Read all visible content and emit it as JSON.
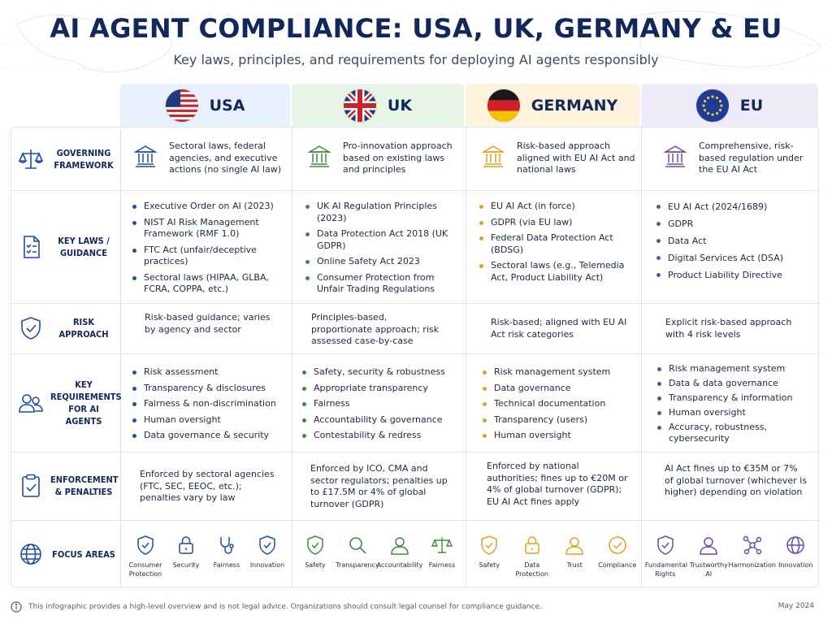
{
  "title": "AI AGENT COMPLIANCE: USA, UK, GERMANY & EU",
  "subtitle": "Key laws, principles, and requirements for deploying AI agents responsibly",
  "colors": {
    "usa": "#e8f0fb",
    "uk": "#e8f4e6",
    "germany": "#fdf3dc",
    "eu": "#efebf8",
    "navy": "#12285a",
    "usa_accent": "#1f4ea1",
    "uk_accent": "#3f8a3a",
    "de_accent": "#e0a020",
    "eu_accent": "#6b4ca8"
  },
  "columns": [
    {
      "key": "usa",
      "name": "USA",
      "flag_icon": "usa-flag-icon"
    },
    {
      "key": "uk",
      "name": "UK",
      "flag_icon": "uk-flag-icon"
    },
    {
      "key": "germany",
      "name": "GERMANY",
      "flag_icon": "germany-flag-icon"
    },
    {
      "key": "eu",
      "name": "EU",
      "flag_icon": "eu-flag-icon"
    }
  ],
  "rows": {
    "governing": {
      "label": "GOVERNING FRAMEWORK",
      "icon": "scales-icon"
    },
    "laws": {
      "label": "KEY LAWS / GUIDANCE",
      "icon": "document-checklist-icon"
    },
    "risk": {
      "label": "RISK APPROACH",
      "icon": "shield-check-icon"
    },
    "requirements": {
      "label": "KEY REQUIREMENTS FOR AI AGENTS",
      "icon": "users-icon"
    },
    "enforcement": {
      "label": "ENFORCEMENT & PENALTIES",
      "icon": "clipboard-check-icon"
    },
    "focus": {
      "label": "FOCUS AREAS",
      "icon": "globe-icon"
    }
  },
  "governing": {
    "usa": "Sectoral laws, federal agencies, and executive actions (no single AI law)",
    "uk": "Pro-innovation approach based on existing laws and principles",
    "germany": "Risk-based approach aligned with EU AI Act and national laws",
    "eu": "Comprehensive, risk-based regulation under the EU AI Act"
  },
  "laws": {
    "usa": [
      "Executive Order on AI (2023)",
      "NIST AI Risk Management Framework (RMF 1.0)",
      "FTC Act (unfair/deceptive practices)",
      "Sectoral laws (HIPAA, GLBA, FCRA, COPPA, etc.)"
    ],
    "uk": [
      "UK AI Regulation Principles (2023)",
      "Data Protection Act 2018 (UK GDPR)",
      "Online Safety Act 2023",
      "Consumer Protection from Unfair Trading Regulations"
    ],
    "germany": [
      "EU AI Act (in force)",
      "GDPR (via EU law)",
      "Federal Data Protection Act (BDSG)",
      "Sectoral laws (e.g., Telemedia Act, Product Liability Act)"
    ],
    "eu": [
      "EU AI Act (2024/1689)",
      "GDPR",
      "Data Act",
      "Digital Services Act (DSA)",
      "Product Liability Directive"
    ]
  },
  "risk": {
    "usa": "Risk-based guidance; varies by agency and sector",
    "uk": "Principles-based, proportionate approach; risk assessed case-by-case",
    "germany": "Risk-based; aligned with EU AI Act risk categories",
    "eu": "Explicit risk-based approach with 4 risk levels"
  },
  "requirements": {
    "usa": [
      "Risk assessment",
      "Transparency & disclosures",
      "Fairness & non-discrimination",
      "Human oversight",
      "Data governance & security"
    ],
    "uk": [
      "Safety, security & robustness",
      "Appropriate transparency",
      "Fairness",
      "Accountability & governance",
      "Contestability & redress"
    ],
    "germany": [
      "Risk management system",
      "Data governance",
      "Technical documentation",
      "Transparency (users)",
      "Human oversight"
    ],
    "eu": [
      "Risk management system",
      "Data & data governance",
      "Transparency & information",
      "Human oversight",
      "Accuracy, robustness, cybersecurity"
    ]
  },
  "enforcement": {
    "usa": "Enforced by sectoral agencies (FTC, SEC, EEOC, etc.); penalties vary by law",
    "uk": "Enforced by ICO, CMA and sector regulators; penalties up to £17.5M or 4% of global turnover (GDPR)",
    "germany": "Enforced by national authorities; fines up to €20M or 4% of global turnover (GDPR); EU AI Act fines apply",
    "eu": "AI Act fines up to €35M or 7% of global turnover (whichever is higher) depending on violation"
  },
  "focus": {
    "usa": [
      {
        "label": "Consumer Protection",
        "icon": "shield-check-icon"
      },
      {
        "label": "Security",
        "icon": "lock-icon"
      },
      {
        "label": "Fairness",
        "icon": "stethoscope-icon"
      },
      {
        "label": "Innovation",
        "icon": "shield-check-icon"
      }
    ],
    "uk": [
      {
        "label": "Safety",
        "icon": "shield-check-icon"
      },
      {
        "label": "Transparency",
        "icon": "magnifier-icon"
      },
      {
        "label": "Accountability",
        "icon": "person-icon"
      },
      {
        "label": "Fairness",
        "icon": "scales-icon"
      }
    ],
    "germany": [
      {
        "label": "Safety",
        "icon": "shield-check-icon"
      },
      {
        "label": "Data Protection",
        "icon": "lock-icon"
      },
      {
        "label": "Trust",
        "icon": "person-icon"
      },
      {
        "label": "Compliance",
        "icon": "check-circle-icon"
      }
    ],
    "eu": [
      {
        "label": "Fundamental Rights",
        "icon": "shield-check-icon"
      },
      {
        "label": "Trustworthy AI",
        "icon": "person-icon"
      },
      {
        "label": "Harmonization",
        "icon": "network-icon"
      },
      {
        "label": "Innovation",
        "icon": "globe-icon"
      }
    ]
  },
  "footnote": "This infographic provides a high-level overview and is not legal advice. Organizations should consult legal counsel for compliance guidance.",
  "date": "May 2024"
}
